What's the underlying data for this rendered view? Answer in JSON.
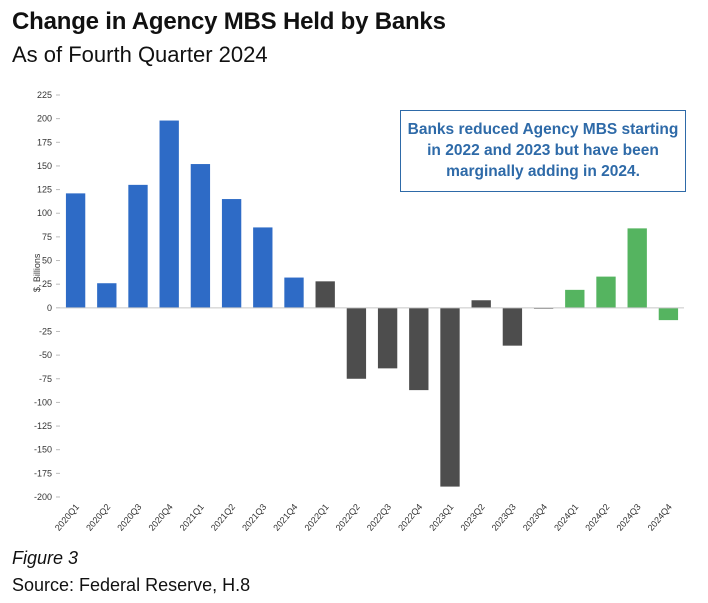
{
  "header": {
    "title": "Change in Agency MBS Held by Banks",
    "subtitle": "As of Fourth Quarter 2024"
  },
  "footer": {
    "figure": "Figure 3",
    "source": "Source: Federal Reserve, H.8"
  },
  "annotation": {
    "text": "Banks reduced Agency MBS starting in 2022 and 2023 but have been marginally adding in 2024."
  },
  "colors": {
    "blue": "#2e6bc6",
    "gray": "#4d4d4d",
    "green": "#55b460",
    "annotation": "#2e6aa8"
  },
  "chart_data": {
    "type": "bar",
    "ylabel": "$, Billions",
    "ylim": [
      -200,
      225
    ],
    "yticks": [
      225,
      200,
      175,
      150,
      125,
      100,
      75,
      50,
      25,
      0,
      -25,
      -50,
      -75,
      -100,
      -125,
      -150,
      -175,
      -200
    ],
    "grid": false,
    "categories": [
      "2020Q1",
      "2020Q2",
      "2020Q3",
      "2020Q4",
      "2021Q1",
      "2021Q2",
      "2021Q3",
      "2021Q4",
      "2022Q1",
      "2022Q2",
      "2022Q3",
      "2022Q4",
      "2023Q1",
      "2023Q2",
      "2023Q3",
      "2023Q4",
      "2024Q1",
      "2024Q2",
      "2024Q3",
      "2024Q4"
    ],
    "values": [
      121,
      26,
      130,
      198,
      152,
      115,
      85,
      32,
      28,
      -75,
      -64,
      -87,
      -189,
      8,
      -40,
      -1,
      19,
      33,
      84,
      -13
    ],
    "bar_colors": [
      "blue",
      "blue",
      "blue",
      "blue",
      "blue",
      "blue",
      "blue",
      "blue",
      "gray",
      "gray",
      "gray",
      "gray",
      "gray",
      "gray",
      "gray",
      "gray",
      "green",
      "green",
      "green",
      "green"
    ]
  }
}
